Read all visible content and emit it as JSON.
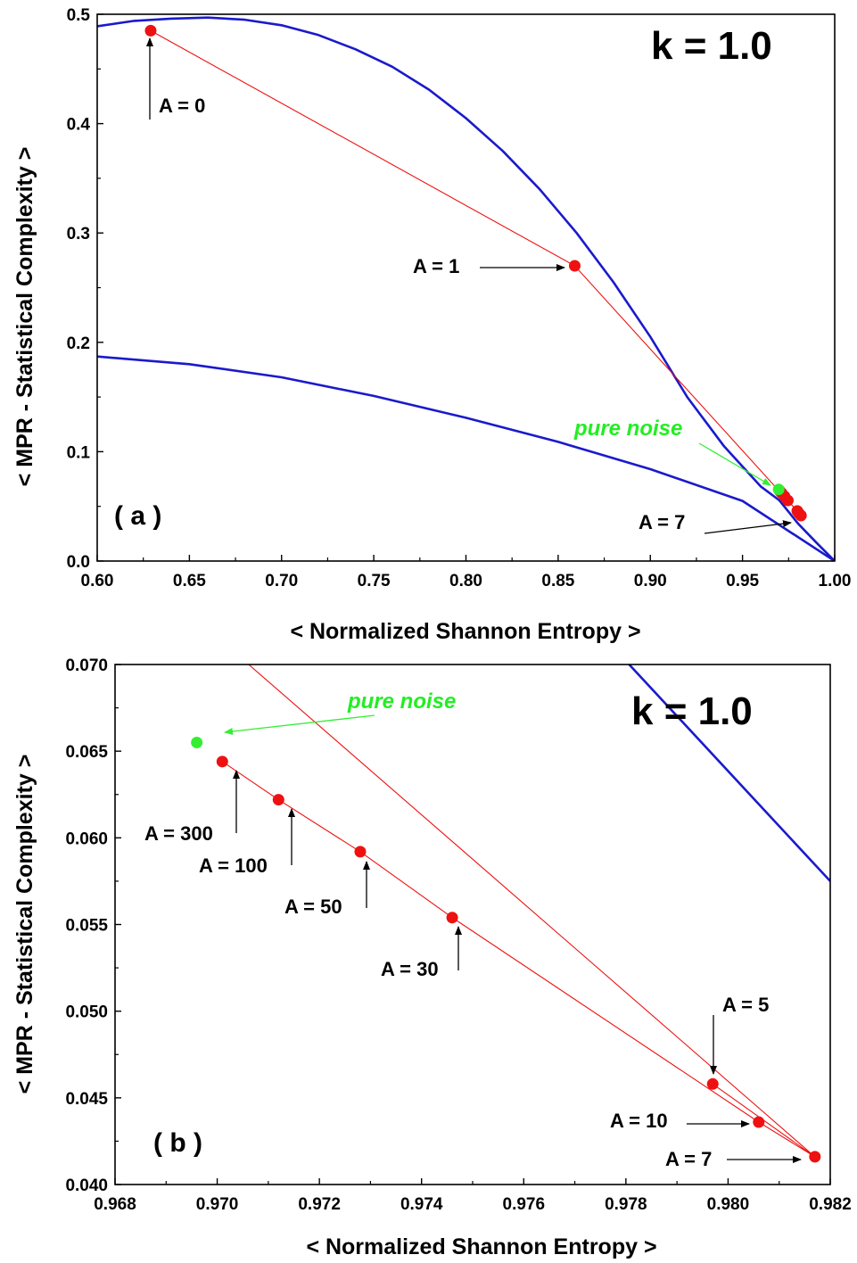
{
  "colors": {
    "boundary": "#1a1acc",
    "series": "#ee1111",
    "noise": "#33ee33",
    "axis": "#000000"
  },
  "chart_data": [
    {
      "type": "scatter",
      "panel": "( a )",
      "title": "k = 1.0",
      "xlabel": "< Normalized  Shannon  Entropy >",
      "ylabel": "< MPR - Statistical  Complexity >",
      "xlim": [
        0.6,
        1.0
      ],
      "ylim": [
        0.0,
        0.5
      ],
      "xticks": [
        "0.60",
        "0.65",
        "0.70",
        "0.75",
        "0.80",
        "0.85",
        "0.90",
        "0.95",
        "1.00"
      ],
      "yticks": [
        "0.0",
        "0.1",
        "0.2",
        "0.3",
        "0.4",
        "0.5"
      ],
      "grid": false,
      "series": [
        {
          "points": [
            {
              "x": 0.629,
              "y": 0.485
            },
            {
              "x": 0.859,
              "y": 0.27
            },
            {
              "x": 0.9797,
              "y": 0.0458
            },
            {
              "x": 0.9817,
              "y": 0.0416
            },
            {
              "x": 0.9806,
              "y": 0.0436
            },
            {
              "x": 0.9746,
              "y": 0.0554
            },
            {
              "x": 0.9728,
              "y": 0.0592
            },
            {
              "x": 0.9712,
              "y": 0.0622
            },
            {
              "x": 0.9701,
              "y": 0.0644
            }
          ]
        },
        {
          "name": "pure noise",
          "points": [
            {
              "x": 0.9696,
              "y": 0.0655
            }
          ]
        }
      ],
      "boundaries": {
        "upper": [
          [
            0.6,
            0.489
          ],
          [
            0.62,
            0.494
          ],
          [
            0.64,
            0.496
          ],
          [
            0.66,
            0.497
          ],
          [
            0.68,
            0.495
          ],
          [
            0.7,
            0.49
          ],
          [
            0.72,
            0.481
          ],
          [
            0.74,
            0.468
          ],
          [
            0.76,
            0.452
          ],
          [
            0.78,
            0.431
          ],
          [
            0.8,
            0.405
          ],
          [
            0.82,
            0.375
          ],
          [
            0.84,
            0.34
          ],
          [
            0.86,
            0.3
          ],
          [
            0.88,
            0.255
          ],
          [
            0.9,
            0.205
          ],
          [
            0.92,
            0.15
          ],
          [
            0.94,
            0.105
          ],
          [
            0.96,
            0.068
          ],
          [
            0.97,
            0.0555
          ],
          [
            0.98,
            0.0345
          ],
          [
            0.99,
            0.017
          ],
          [
            1.0,
            0.0
          ]
        ],
        "lower": [
          [
            0.6,
            0.187
          ],
          [
            0.65,
            0.18
          ],
          [
            0.7,
            0.168
          ],
          [
            0.75,
            0.151
          ],
          [
            0.8,
            0.131
          ],
          [
            0.85,
            0.109
          ],
          [
            0.9,
            0.084
          ],
          [
            0.95,
            0.055
          ],
          [
            1.0,
            0.0
          ]
        ]
      },
      "annotations": [
        {
          "text": "A = 0"
        },
        {
          "text": "A = 1"
        },
        {
          "text": "A = 7"
        },
        {
          "text": "pure noise"
        }
      ]
    },
    {
      "type": "scatter",
      "panel": "( b )",
      "title": "k = 1.0",
      "xlabel": "< Normalized  Shannon  Entropy >",
      "ylabel": "< MPR - Statistical  Complexity >",
      "xlim": [
        0.968,
        0.982
      ],
      "ylim": [
        0.04,
        0.07
      ],
      "xticks": [
        "0.968",
        "0.970",
        "0.972",
        "0.974",
        "0.976",
        "0.978",
        "0.980",
        "0.982"
      ],
      "yticks": [
        "0.040",
        "0.045",
        "0.050",
        "0.055",
        "0.060",
        "0.065",
        "0.070"
      ],
      "grid": false,
      "series": [
        {
          "points": [
            {
              "x": 0.9797,
              "y": 0.0458
            },
            {
              "x": 0.9817,
              "y": 0.0416
            },
            {
              "x": 0.9806,
              "y": 0.0436
            },
            {
              "x": 0.9746,
              "y": 0.0554
            },
            {
              "x": 0.9728,
              "y": 0.0592
            },
            {
              "x": 0.9712,
              "y": 0.0622
            },
            {
              "x": 0.9701,
              "y": 0.0644
            }
          ]
        },
        {
          "name": "pure noise",
          "points": [
            {
              "x": 0.9696,
              "y": 0.0655
            }
          ]
        }
      ],
      "extra_line": [
        [
          0.9705,
          0.0703
        ],
        [
          0.9817,
          0.0416
        ]
      ],
      "boundary": [
        [
          0.978,
          0.0702
        ],
        [
          0.982,
          0.0575
        ]
      ],
      "annotations": [
        {
          "text": "A = 300"
        },
        {
          "text": "A = 100"
        },
        {
          "text": "A = 50"
        },
        {
          "text": "A = 30"
        },
        {
          "text": "A = 5"
        },
        {
          "text": "A = 10"
        },
        {
          "text": "A = 7"
        },
        {
          "text": "pure noise"
        }
      ]
    }
  ]
}
